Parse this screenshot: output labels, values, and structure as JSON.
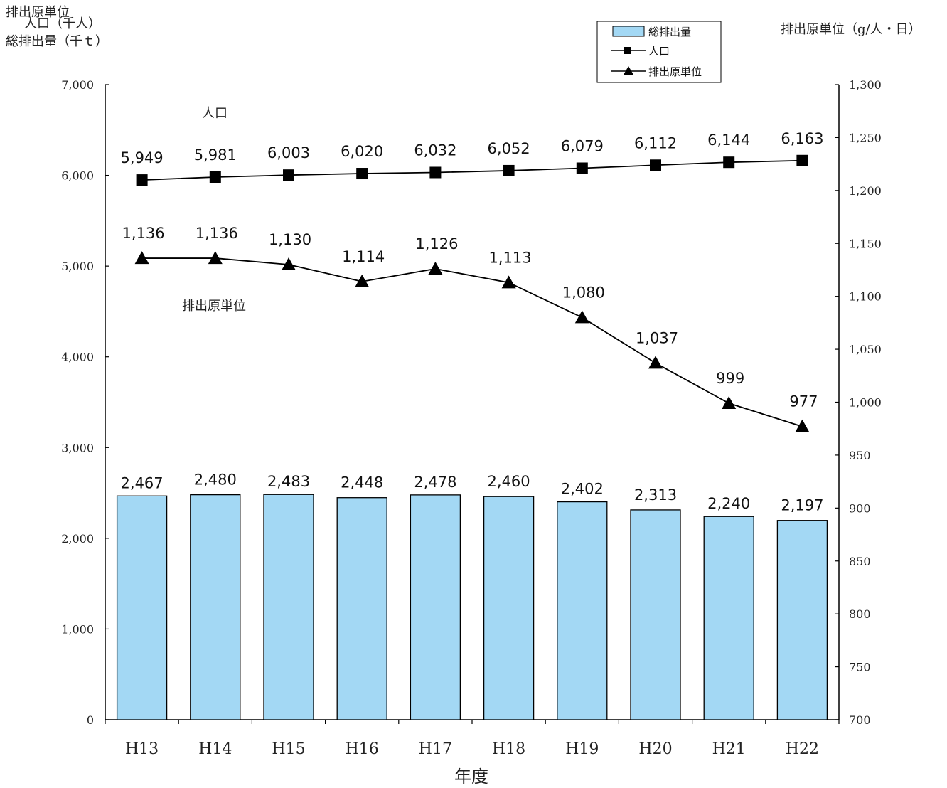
{
  "chart_data": {
    "type": "bar",
    "categories": [
      "H13",
      "H14",
      "H15",
      "H16",
      "H17",
      "H18",
      "H19",
      "H20",
      "H21",
      "H22"
    ],
    "series": [
      {
        "name": "総排出量",
        "type": "bar",
        "axis": "left",
        "values": [
          2467,
          2480,
          2483,
          2448,
          2478,
          2460,
          2402,
          2313,
          2240,
          2197
        ]
      },
      {
        "name": "人口",
        "type": "line",
        "marker": "square",
        "axis": "left",
        "values": [
          5949,
          5981,
          6003,
          6020,
          6032,
          6052,
          6079,
          6112,
          6144,
          6163
        ]
      },
      {
        "name": "排出原単位",
        "type": "line",
        "marker": "triangle",
        "axis": "right",
        "values": [
          1136,
          1136,
          1130,
          1114,
          1126,
          1113,
          1080,
          1037,
          999,
          977
        ]
      }
    ],
    "xlabel": "年度",
    "ylabel_left": [
      "排出原単位",
      "人口（千人）",
      "総排出量（千ｔ）"
    ],
    "ylabel_right": "排出原単位（g/人・日）",
    "ylim_left": [
      0,
      7000
    ],
    "ylim_right": [
      700,
      1300
    ],
    "yticks_left": [
      "0",
      "1,000",
      "2,000",
      "3,000",
      "4,000",
      "5,000",
      "6,000",
      "7,000"
    ],
    "yticks_right": [
      "700",
      "750",
      "800",
      "850",
      "900",
      "950",
      "1,000",
      "1,050",
      "1,100",
      "1,150",
      "1,200",
      "1,250",
      "1,300"
    ],
    "annotations": {
      "population": "人口",
      "unit": "排出原単位"
    },
    "legend_position": "top-right",
    "grid": false,
    "colors": {
      "bar": "#a3d8f4",
      "line": "#000000"
    }
  }
}
